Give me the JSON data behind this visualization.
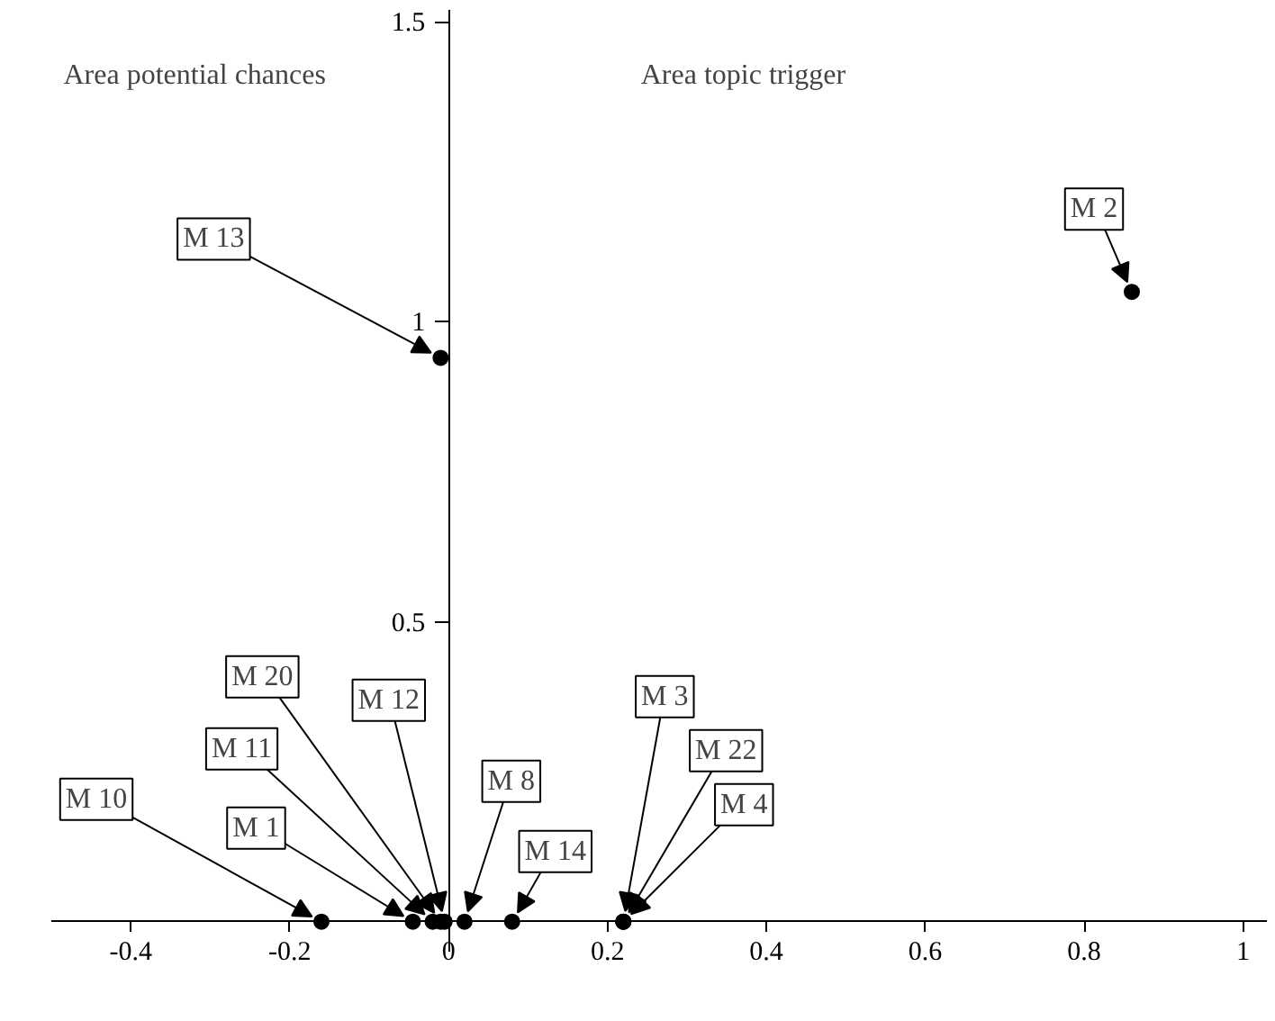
{
  "chart_data": {
    "type": "scatter",
    "series": [
      {
        "color": "#000000",
        "x": [
          -0.16,
          -0.045,
          -0.02,
          -0.01,
          -0.005,
          0.02,
          0.08,
          0.22,
          0.22,
          0.22,
          0.86,
          -0.01
        ],
        "values": [
          0,
          0,
          0,
          0,
          0,
          0,
          0,
          0,
          0,
          0,
          1.05,
          0.94
        ]
      }
    ],
    "annotations": [
      "Area potential chances",
      "Area topic trigger",
      {
        "text": "M 10",
        "x": -0.16,
        "y": 0
      },
      {
        "text": "M 1",
        "x": -0.045,
        "y": 0
      },
      {
        "text": "M 11",
        "x": -0.02,
        "y": 0
      },
      {
        "text": "M 20",
        "x": -0.01,
        "y": 0
      },
      {
        "text": "M 12",
        "x": -0.005,
        "y": 0
      },
      {
        "text": "M 8",
        "x": 0.02,
        "y": 0
      },
      {
        "text": "M 14",
        "x": 0.08,
        "y": 0
      },
      {
        "text": "M 3",
        "x": 0.22,
        "y": 0
      },
      {
        "text": "M 22",
        "x": 0.22,
        "y": 0
      },
      {
        "text": "M 4",
        "x": 0.22,
        "y": 0
      },
      {
        "text": "M 2",
        "x": 0.86,
        "y": 1.05
      },
      {
        "text": "M 13",
        "x": -0.01,
        "y": 0.94
      }
    ],
    "xlim": [
      -0.5,
      1.03
    ],
    "ylim": [
      -0.05,
      1.52
    ],
    "xticks": [
      -0.4,
      -0.2,
      0,
      0.2,
      0.4,
      0.6,
      0.8,
      1
    ],
    "yticks": [
      0.5,
      1,
      1.5
    ],
    "marker": "circle",
    "grid": false
  }
}
